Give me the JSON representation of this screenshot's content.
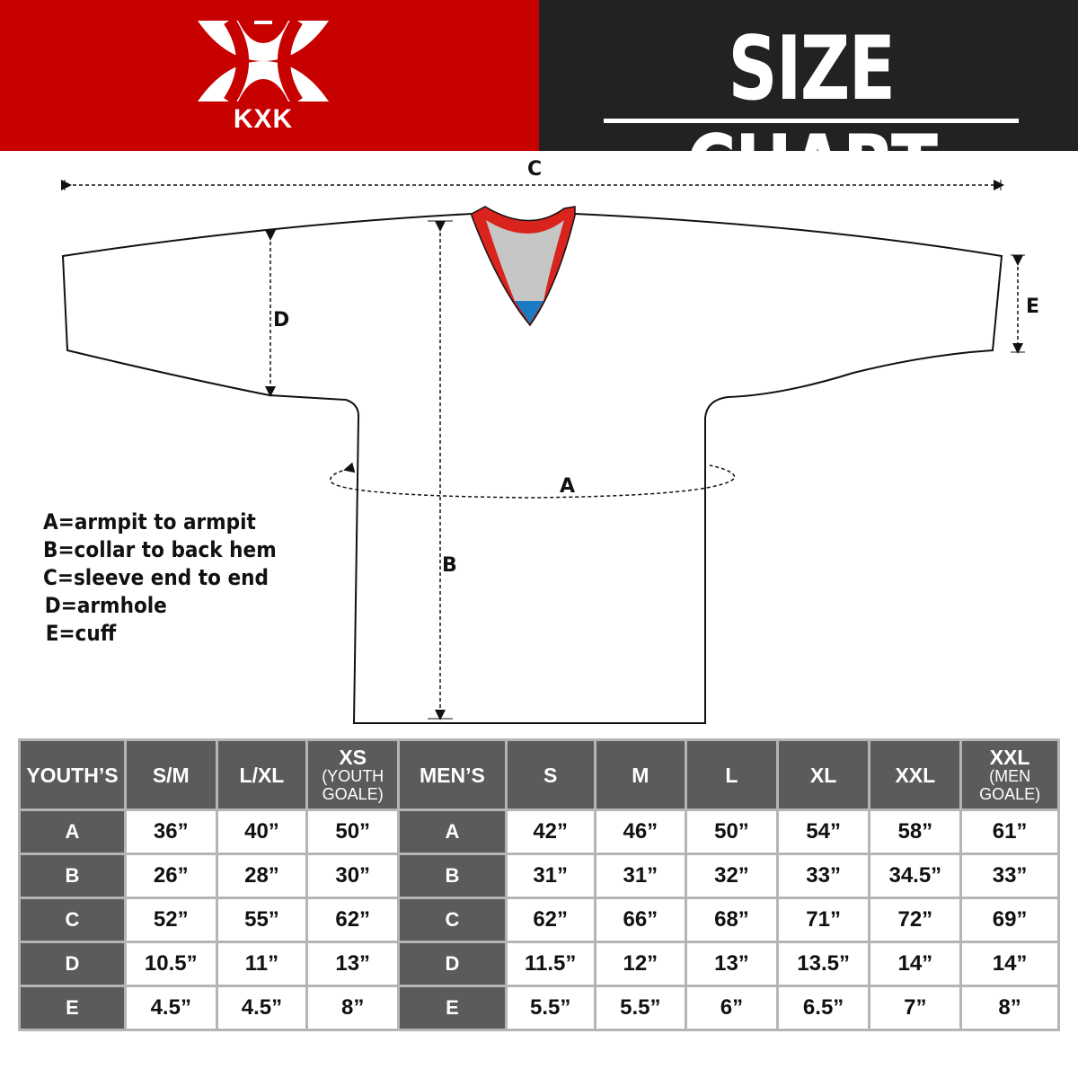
{
  "brand": {
    "logo_text": "KXK",
    "primary_color": "#c70000",
    "dark_color": "#222222"
  },
  "header": {
    "title": "SIZE CHART"
  },
  "diagram": {
    "labels": {
      "A": "A",
      "B": "B",
      "C": "C",
      "D": "D",
      "E": "E"
    },
    "collar_colors": {
      "trim": "#d9231d",
      "inner": "#c6c6c6",
      "tip": "#1a7ac4"
    }
  },
  "legend": [
    "A=armpit to armpit",
    "B=collar to back hem",
    "C=sleeve end to end",
    "D=armhole",
    "E=cuff"
  ],
  "table": {
    "header_color": "#5b5b5c",
    "columns": [
      {
        "main": "YOUTH’S",
        "sub": ""
      },
      {
        "main": "S/M",
        "sub": ""
      },
      {
        "main": "L/XL",
        "sub": ""
      },
      {
        "main": "XS",
        "sub": "(YOUTH GOALE)"
      },
      {
        "main": "MEN’S",
        "sub": ""
      },
      {
        "main": "S",
        "sub": ""
      },
      {
        "main": "M",
        "sub": ""
      },
      {
        "main": "L",
        "sub": ""
      },
      {
        "main": "XL",
        "sub": ""
      },
      {
        "main": "XXL",
        "sub": ""
      },
      {
        "main": "XXL",
        "sub": "(MEN GOALE)"
      }
    ],
    "rows": [
      {
        "label": "A",
        "youth": [
          "36”",
          "40”",
          "50”"
        ],
        "men": [
          "42”",
          "46”",
          "50”",
          "54”",
          "58”",
          "61”"
        ]
      },
      {
        "label": "B",
        "youth": [
          "26”",
          "28”",
          "30”"
        ],
        "men": [
          "31”",
          "31”",
          "32”",
          "33”",
          "34.5”",
          "33”"
        ]
      },
      {
        "label": "C",
        "youth": [
          "52”",
          "55”",
          "62”"
        ],
        "men": [
          "62”",
          "66”",
          "68”",
          "71”",
          "72”",
          "69”"
        ]
      },
      {
        "label": "D",
        "youth": [
          "10.5”",
          "11”",
          "13”"
        ],
        "men": [
          "11.5”",
          "12”",
          "13”",
          "13.5”",
          "14”",
          "14”"
        ]
      },
      {
        "label": "E",
        "youth": [
          "4.5”",
          "4.5”",
          "8”"
        ],
        "men": [
          "5.5”",
          "5.5”",
          "6”",
          "6.5”",
          "7”",
          "8”"
        ]
      }
    ]
  }
}
